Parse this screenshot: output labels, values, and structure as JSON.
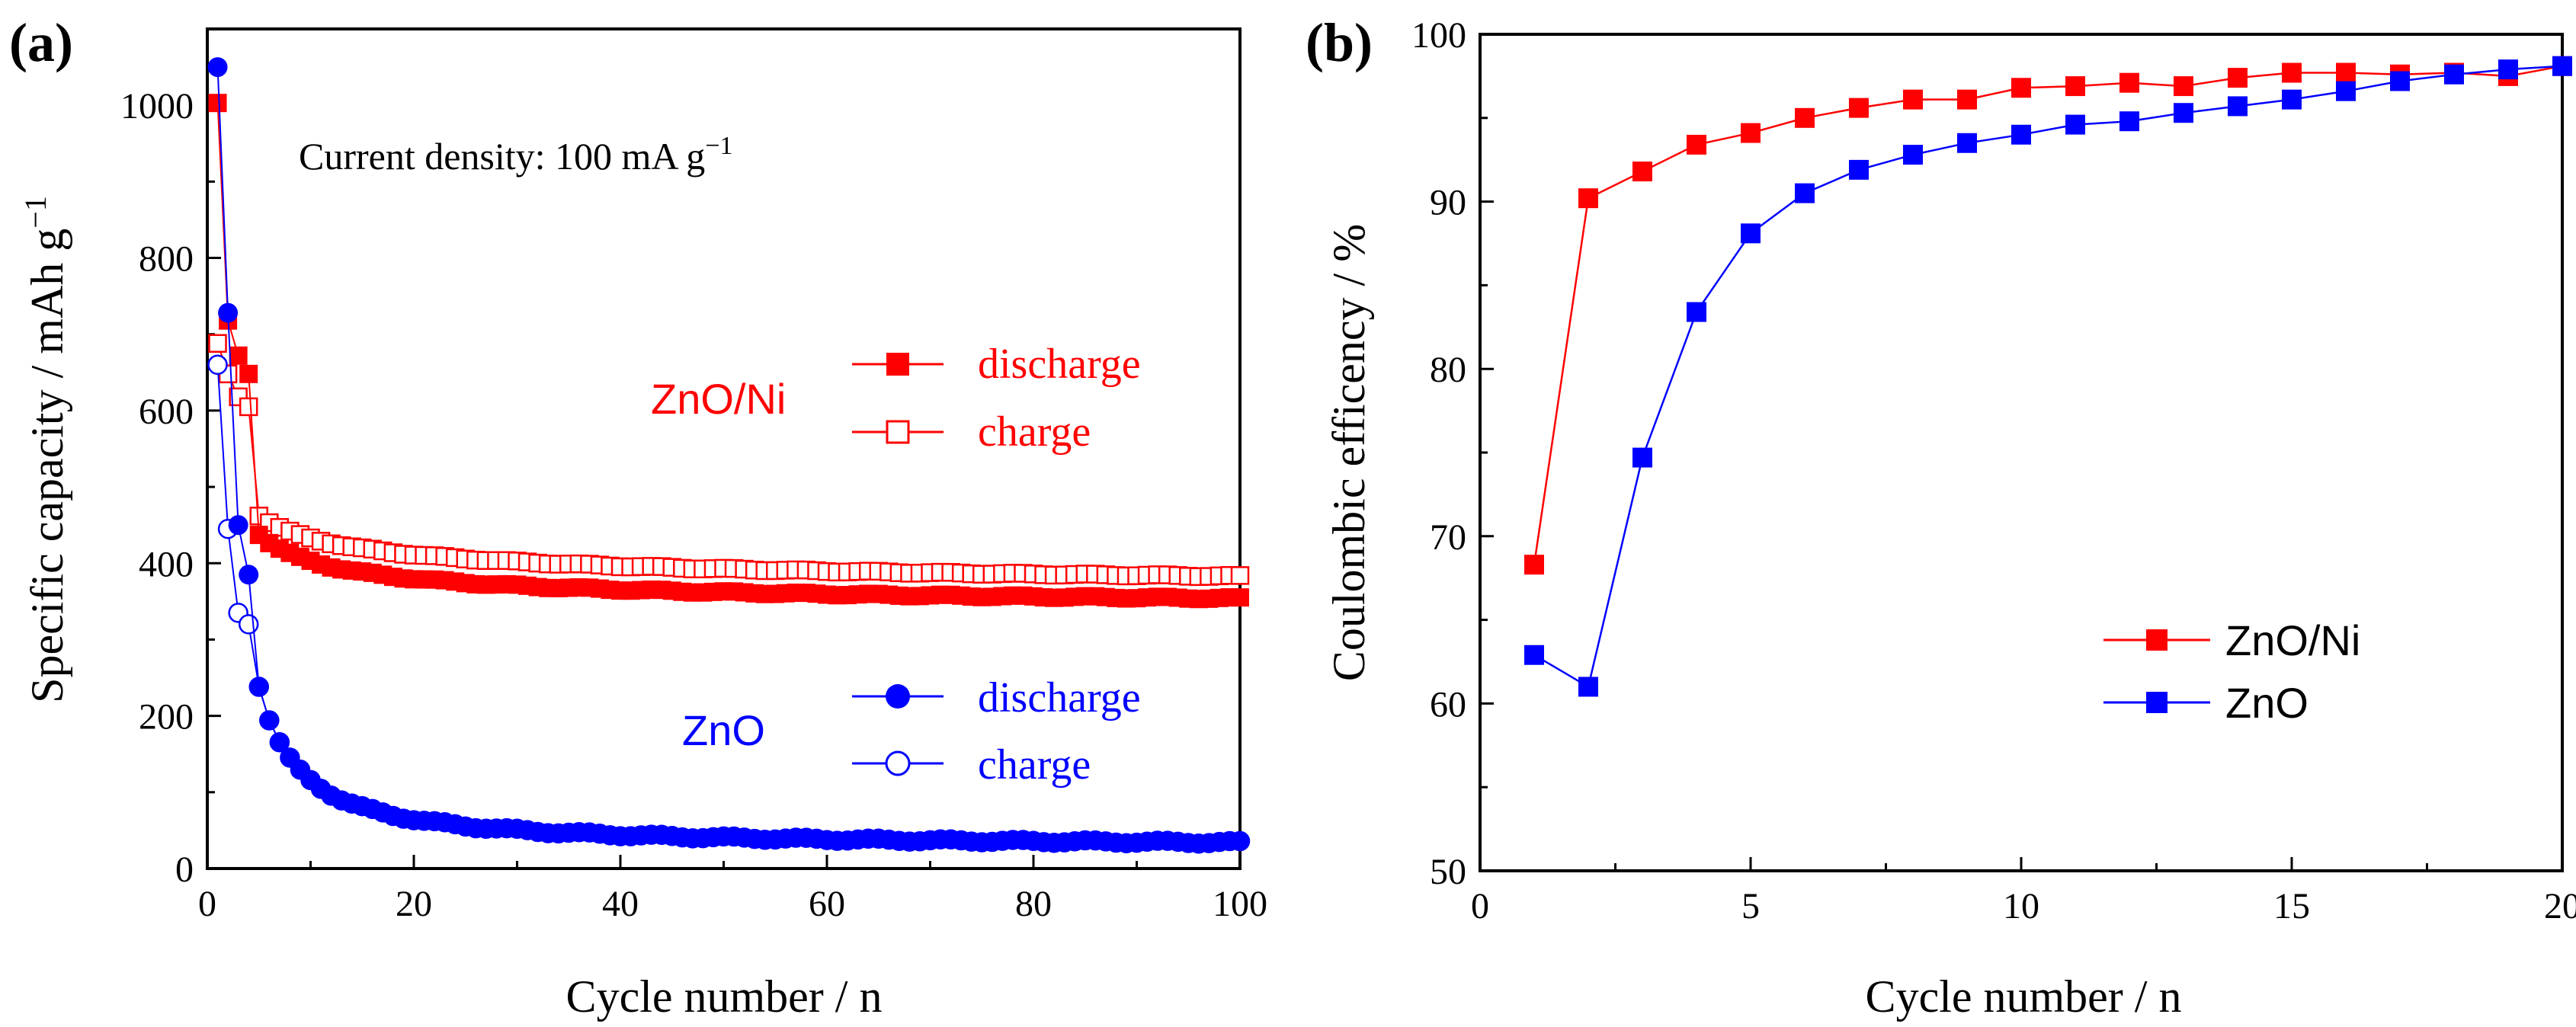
{
  "chart_data": [
    {
      "panel": "(a)",
      "type": "scatter",
      "xlabel": "Cycle number / n",
      "ylabel_main": "Specific capacity / mAh g",
      "ylabel_sup": "−1",
      "xlim": [
        0,
        100
      ],
      "ylim": [
        0,
        1100
      ],
      "xticks": [
        0,
        20,
        40,
        60,
        80,
        100
      ],
      "yticks": [
        0,
        200,
        400,
        600,
        800,
        1000
      ],
      "annotation_main": "Current density: 100 mA g",
      "annotation_sup": "−1",
      "groups": [
        {
          "label": "ZnO/Ni",
          "color": "#ff0000"
        },
        {
          "label": "ZnO",
          "color": "#0000ff"
        }
      ],
      "legend": [
        {
          "group": "ZnO/Ni",
          "entries": [
            "discharge",
            "charge"
          ]
        },
        {
          "group": "ZnO",
          "entries": [
            "discharge",
            "charge"
          ]
        }
      ],
      "series": [
        {
          "name": "ZnO/Ni discharge",
          "color": "#ff0000",
          "marker": "square-filled",
          "model": {
            "kind": "powerlaw",
            "a": 340,
            "b": 1.3,
            "c": 280,
            "d": 0.65
          },
          "x": [
            1,
            2,
            3,
            4
          ],
          "values": [
            1003,
            718,
            672,
            648
          ]
        },
        {
          "name": "ZnO/Ni charge",
          "color": "#ff0000",
          "marker": "square-open",
          "model": {
            "kind": "powerlaw",
            "a": 360,
            "b": 1.0,
            "c": 230,
            "d": 0.5
          },
          "x": [
            1,
            2,
            3,
            4
          ],
          "values": [
            688,
            648,
            618,
            605
          ]
        },
        {
          "name": "ZnO discharge",
          "color": "#0000ff",
          "marker": "circle-filled",
          "model": {
            "kind": "powerlaw",
            "a": 30,
            "b": 1.8,
            "c": 1700,
            "d": 1.3
          },
          "x": [
            1,
            2,
            3,
            4
          ],
          "values": [
            1050,
            728,
            450,
            385
          ]
        },
        {
          "name": "ZnO charge",
          "color": "#0000ff",
          "marker": "circle-open",
          "model": {
            "kind": "powerlaw",
            "a": 30,
            "b": 1.8,
            "c": 1700,
            "d": 1.3
          },
          "x": [
            1,
            2,
            3,
            4
          ],
          "values": [
            660,
            445,
            335,
            320
          ]
        }
      ]
    },
    {
      "panel": "(b)",
      "type": "line",
      "xlabel": "Cycle number / n",
      "ylabel": "Coulombic efficency / %",
      "xlim": [
        0,
        20
      ],
      "ylim": [
        50,
        100
      ],
      "xticks": [
        0,
        5,
        10,
        15,
        20
      ],
      "yticks": [
        50,
        60,
        70,
        80,
        90,
        100
      ],
      "legend_position": "center-right",
      "x": [
        1,
        2,
        3,
        4,
        5,
        6,
        7,
        8,
        9,
        10,
        11,
        12,
        13,
        14,
        15,
        16,
        17,
        18,
        19,
        20
      ],
      "series": [
        {
          "name": "ZnO/Ni",
          "color": "#ff0000",
          "values": [
            68.3,
            90.2,
            91.8,
            93.4,
            94.1,
            95.0,
            95.6,
            96.1,
            96.1,
            96.8,
            96.9,
            97.1,
            96.9,
            97.4,
            97.7,
            97.7,
            97.6,
            97.7,
            97.5,
            98.1
          ]
        },
        {
          "name": "ZnO",
          "color": "#0000ff",
          "values": [
            62.9,
            61.0,
            74.7,
            83.4,
            88.1,
            90.5,
            91.9,
            92.8,
            93.5,
            94.0,
            94.6,
            94.8,
            95.3,
            95.7,
            96.1,
            96.6,
            97.2,
            97.6,
            97.9,
            98.1
          ]
        }
      ]
    }
  ]
}
